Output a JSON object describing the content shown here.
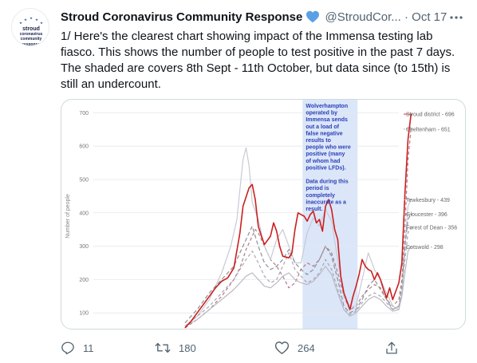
{
  "tweet": {
    "display_name": "Stroud Coronavirus Community Response",
    "handle": "@StroudCor...",
    "separator": "·",
    "date": "Oct 17",
    "text": "1/ Here's the clearest chart showing impact of the Immensa testing lab fiasco. This shows the number of people to test positive in the past 7 days. The shaded are covers 8th Sept - 11th October, but data since (to 15th) is still an undercount.",
    "verified_icon": "blue-heart-icon",
    "more_icon": "more-options-icon"
  },
  "avatar": {
    "line1": "stroud",
    "line2": "coronavirus",
    "line3": "community",
    "line4": "response",
    "star_color": "#2f4fa8"
  },
  "actions": {
    "reply_count": "11",
    "retweet_count": "180",
    "like_count": "264",
    "reply_icon": "reply-icon",
    "retweet_icon": "retweet-icon",
    "like_icon": "heart-outline-icon",
    "share_icon": "share-icon"
  },
  "chart_data": {
    "type": "line",
    "ylabel": "Number of people",
    "yticks": [
      100,
      200,
      300,
      400,
      500,
      600,
      700
    ],
    "ylim": [
      55,
      720
    ],
    "xlim": [
      0,
      100
    ],
    "grid": true,
    "shaded_region": {
      "x_start": 68.5,
      "x_end": 86.5,
      "color": "#dbe6f8"
    },
    "annotation": "Wolverhampton operated by Immensa sends out a load of false negative results to people who were positive (many of whom had positive LFDs).\n\nData during this period is completely inaccurate as a result.",
    "series": [
      {
        "name": "Stroud district - 696",
        "color": "#cc1f1f",
        "dash": "solid",
        "points": [
          [
            30,
            55
          ],
          [
            32,
            75
          ],
          [
            34,
            100
          ],
          [
            36,
            125
          ],
          [
            38,
            150
          ],
          [
            40,
            175
          ],
          [
            42,
            195
          ],
          [
            44,
            205
          ],
          [
            46,
            235
          ],
          [
            48,
            340
          ],
          [
            49,
            420
          ],
          [
            51,
            475
          ],
          [
            52,
            485
          ],
          [
            53,
            440
          ],
          [
            54,
            360
          ],
          [
            55,
            330
          ],
          [
            56,
            305
          ],
          [
            58,
            330
          ],
          [
            59,
            370
          ],
          [
            60,
            345
          ],
          [
            61,
            300
          ],
          [
            62,
            270
          ],
          [
            64,
            265
          ],
          [
            65,
            280
          ],
          [
            66,
            350
          ],
          [
            67,
            400
          ],
          [
            68,
            395
          ],
          [
            69,
            390
          ],
          [
            70,
            375
          ],
          [
            71,
            395
          ],
          [
            72,
            405
          ],
          [
            73,
            370
          ],
          [
            74,
            380
          ],
          [
            75,
            345
          ],
          [
            76,
            420
          ],
          [
            77,
            440
          ],
          [
            78,
            410
          ],
          [
            79,
            350
          ],
          [
            80,
            320
          ],
          [
            81,
            210
          ],
          [
            82,
            160
          ],
          [
            83,
            135
          ],
          [
            84,
            110
          ],
          [
            85,
            150
          ],
          [
            86,
            180
          ],
          [
            87,
            215
          ],
          [
            88,
            260
          ],
          [
            89,
            240
          ],
          [
            90,
            230
          ],
          [
            91,
            225
          ],
          [
            92,
            200
          ],
          [
            93,
            220
          ],
          [
            94,
            200
          ],
          [
            95,
            170
          ],
          [
            96,
            145
          ],
          [
            97,
            175
          ],
          [
            98,
            140
          ],
          [
            99,
            165
          ],
          [
            100,
            190
          ],
          [
            101,
            250
          ],
          [
            102,
            460
          ],
          [
            103,
            620
          ],
          [
            104,
            696
          ]
        ]
      },
      {
        "name": "Cheltenham - 651",
        "color": "#b07a86",
        "dash": "4,3",
        "points": [
          [
            30,
            55
          ],
          [
            34,
            80
          ],
          [
            38,
            110
          ],
          [
            42,
            150
          ],
          [
            46,
            200
          ],
          [
            48,
            235
          ],
          [
            50,
            290
          ],
          [
            52,
            330
          ],
          [
            53,
            350
          ],
          [
            54,
            340
          ],
          [
            56,
            300
          ],
          [
            58,
            260
          ],
          [
            60,
            240
          ],
          [
            62,
            210
          ],
          [
            64,
            175
          ],
          [
            66,
            190
          ],
          [
            68,
            230
          ],
          [
            70,
            250
          ],
          [
            72,
            240
          ],
          [
            74,
            260
          ],
          [
            76,
            300
          ],
          [
            78,
            280
          ],
          [
            80,
            220
          ],
          [
            82,
            150
          ],
          [
            84,
            110
          ],
          [
            86,
            120
          ],
          [
            88,
            150
          ],
          [
            90,
            170
          ],
          [
            92,
            185
          ],
          [
            94,
            175
          ],
          [
            96,
            140
          ],
          [
            98,
            120
          ],
          [
            100,
            140
          ],
          [
            101,
            200
          ],
          [
            102,
            360
          ],
          [
            103,
            560
          ],
          [
            104,
            651
          ]
        ]
      },
      {
        "name": "Tewkesbury - 439",
        "color": "#c9c9d6",
        "dash": "solid",
        "points": [
          [
            30,
            60
          ],
          [
            34,
            90
          ],
          [
            38,
            140
          ],
          [
            42,
            220
          ],
          [
            45,
            300
          ],
          [
            47,
            380
          ],
          [
            48,
            470
          ],
          [
            49,
            560
          ],
          [
            50,
            595
          ],
          [
            51,
            540
          ],
          [
            52,
            430
          ],
          [
            54,
            380
          ],
          [
            56,
            300
          ],
          [
            58,
            260
          ],
          [
            60,
            320
          ],
          [
            62,
            350
          ],
          [
            64,
            300
          ],
          [
            66,
            250
          ],
          [
            68,
            250
          ],
          [
            70,
            340
          ],
          [
            72,
            385
          ],
          [
            74,
            360
          ],
          [
            76,
            410
          ],
          [
            78,
            375
          ],
          [
            80,
            260
          ],
          [
            82,
            150
          ],
          [
            84,
            120
          ],
          [
            86,
            120
          ],
          [
            88,
            200
          ],
          [
            90,
            280
          ],
          [
            92,
            230
          ],
          [
            94,
            200
          ],
          [
            96,
            160
          ],
          [
            98,
            120
          ],
          [
            100,
            110
          ],
          [
            101,
            160
          ],
          [
            102,
            300
          ],
          [
            103,
            420
          ],
          [
            104,
            439
          ]
        ]
      },
      {
        "name": "Gloucester - 396",
        "color": "#8f8f99",
        "dash": "5,3",
        "points": [
          [
            30,
            70
          ],
          [
            34,
            110
          ],
          [
            38,
            160
          ],
          [
            42,
            200
          ],
          [
            46,
            240
          ],
          [
            48,
            280
          ],
          [
            50,
            320
          ],
          [
            52,
            360
          ],
          [
            54,
            300
          ],
          [
            56,
            250
          ],
          [
            58,
            230
          ],
          [
            60,
            240
          ],
          [
            62,
            260
          ],
          [
            64,
            290
          ],
          [
            66,
            250
          ],
          [
            68,
            230
          ],
          [
            70,
            215
          ],
          [
            72,
            230
          ],
          [
            74,
            260
          ],
          [
            76,
            300
          ],
          [
            78,
            270
          ],
          [
            80,
            200
          ],
          [
            82,
            120
          ],
          [
            84,
            100
          ],
          [
            86,
            110
          ],
          [
            88,
            140
          ],
          [
            90,
            180
          ],
          [
            92,
            200
          ],
          [
            94,
            170
          ],
          [
            96,
            140
          ],
          [
            98,
            110
          ],
          [
            100,
            120
          ],
          [
            101,
            180
          ],
          [
            102,
            300
          ],
          [
            103,
            380
          ],
          [
            104,
            396
          ]
        ]
      },
      {
        "name": "Forest of Dean - 356",
        "color": "#a8a8b2",
        "dash": "4,3",
        "points": [
          [
            30,
            60
          ],
          [
            34,
            90
          ],
          [
            38,
            120
          ],
          [
            42,
            160
          ],
          [
            46,
            200
          ],
          [
            48,
            230
          ],
          [
            50,
            260
          ],
          [
            52,
            285
          ],
          [
            54,
            250
          ],
          [
            56,
            210
          ],
          [
            58,
            190
          ],
          [
            60,
            200
          ],
          [
            62,
            240
          ],
          [
            64,
            280
          ],
          [
            66,
            230
          ],
          [
            68,
            210
          ],
          [
            70,
            190
          ],
          [
            72,
            200
          ],
          [
            74,
            220
          ],
          [
            76,
            260
          ],
          [
            78,
            230
          ],
          [
            80,
            170
          ],
          [
            82,
            110
          ],
          [
            84,
            95
          ],
          [
            86,
            105
          ],
          [
            88,
            130
          ],
          [
            90,
            150
          ],
          [
            92,
            160
          ],
          [
            94,
            150
          ],
          [
            96,
            130
          ],
          [
            98,
            110
          ],
          [
            100,
            120
          ],
          [
            101,
            170
          ],
          [
            102,
            260
          ],
          [
            103,
            340
          ],
          [
            104,
            356
          ]
        ]
      },
      {
        "name": "Cotswold - 298",
        "color": "#b9b9c4",
        "dash": "solid",
        "points": [
          [
            30,
            60
          ],
          [
            34,
            80
          ],
          [
            38,
            110
          ],
          [
            42,
            140
          ],
          [
            46,
            170
          ],
          [
            48,
            190
          ],
          [
            50,
            210
          ],
          [
            52,
            220
          ],
          [
            54,
            200
          ],
          [
            56,
            180
          ],
          [
            58,
            175
          ],
          [
            60,
            190
          ],
          [
            62,
            210
          ],
          [
            64,
            220
          ],
          [
            66,
            200
          ],
          [
            68,
            190
          ],
          [
            70,
            185
          ],
          [
            72,
            195
          ],
          [
            74,
            215
          ],
          [
            76,
            240
          ],
          [
            78,
            215
          ],
          [
            80,
            160
          ],
          [
            82,
            110
          ],
          [
            84,
            90
          ],
          [
            86,
            100
          ],
          [
            88,
            120
          ],
          [
            90,
            140
          ],
          [
            92,
            150
          ],
          [
            94,
            140
          ],
          [
            96,
            120
          ],
          [
            98,
            105
          ],
          [
            100,
            110
          ],
          [
            101,
            150
          ],
          [
            102,
            220
          ],
          [
            103,
            285
          ],
          [
            104,
            298
          ]
        ]
      }
    ]
  }
}
